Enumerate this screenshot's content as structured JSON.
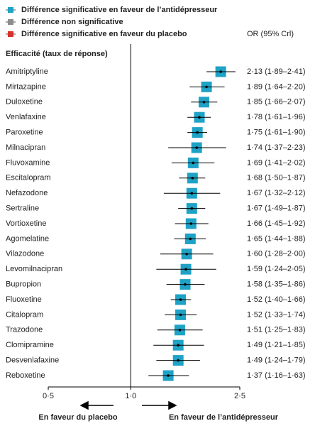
{
  "chart_data": {
    "type": "forest",
    "legend": [
      {
        "name": "Différence significative en faveur de l’antidépresseur",
        "color": "#1ea2c6"
      },
      {
        "name": "Différence non significative",
        "color": "#8c8c8c"
      },
      {
        "name": "Différence significative en faveur du placebo",
        "color": "#d9312b"
      }
    ],
    "column_header": "OR (95% Crl)",
    "title": "Efficacité (taux de réponse)",
    "categories": [
      "Amitriptyline",
      "Mirtazapine",
      "Duloxetine",
      "Venlafaxine",
      "Paroxetine",
      "Milnacipran",
      "Fluvoxamine",
      "Escitalopram",
      "Nefazodone",
      "Sertraline",
      "Vortioxetine",
      "Agomelatine",
      "Vilazodone",
      "Levomilnacipran",
      "Bupropion",
      "Fluoxetine",
      "Citalopram",
      "Trazodone",
      "Clomipramine",
      "Desvenlafaxine",
      "Reboxetine"
    ],
    "values": [
      2.13,
      1.89,
      1.85,
      1.78,
      1.75,
      1.74,
      1.69,
      1.68,
      1.67,
      1.67,
      1.66,
      1.65,
      1.6,
      1.59,
      1.58,
      1.52,
      1.52,
      1.51,
      1.49,
      1.49,
      1.37
    ],
    "lower": [
      1.89,
      1.64,
      1.66,
      1.61,
      1.61,
      1.37,
      1.41,
      1.5,
      1.32,
      1.49,
      1.45,
      1.44,
      1.28,
      1.24,
      1.35,
      1.4,
      1.33,
      1.25,
      1.21,
      1.24,
      1.16
    ],
    "upper": [
      2.41,
      2.2,
      2.07,
      1.96,
      1.9,
      2.23,
      2.02,
      1.87,
      2.12,
      1.87,
      1.92,
      1.88,
      2.0,
      2.05,
      1.86,
      1.66,
      1.74,
      1.83,
      1.85,
      1.79,
      1.63
    ],
    "value_labels": [
      "2·13 (1·89–2·41)",
      "1·89 (1·64–2·20)",
      "1·85 (1·66–2·07)",
      "1·78 (1·61–1·96)",
      "1·75 (1·61–1·90)",
      "1·74 (1·37–2·23)",
      "1·69 (1·41–2·02)",
      "1·68 (1·50–1·87)",
      "1·67 (1·32–2·12)",
      "1·67 (1·49–1·87)",
      "1·66 (1·45–1·92)",
      "1·65 (1·44–1·88)",
      "1·60 (1·28–2·00)",
      "1·59 (1·24–2·05)",
      "1·58 (1·35–1·86)",
      "1·52 (1·40–1·66)",
      "1·52 (1·33–1·74)",
      "1·51 (1·25–1·83)",
      "1·49 (1·21–1·85)",
      "1·49 (1·24–1·79)",
      "1·37 (1·16–1·63)"
    ],
    "color": "#1ea2c6",
    "xlim": [
      0.5,
      2.5
    ],
    "xticks": [
      {
        "value": 0.5,
        "label": "0·5"
      },
      {
        "value": 1.0,
        "label": "1·0"
      },
      {
        "value": 2.5,
        "label": "2·5"
      }
    ],
    "log_scale": true,
    "reference": 1.0,
    "left_annotation": "En faveur du placebo",
    "right_annotation": "En faveur  de l’antidépresseur"
  }
}
